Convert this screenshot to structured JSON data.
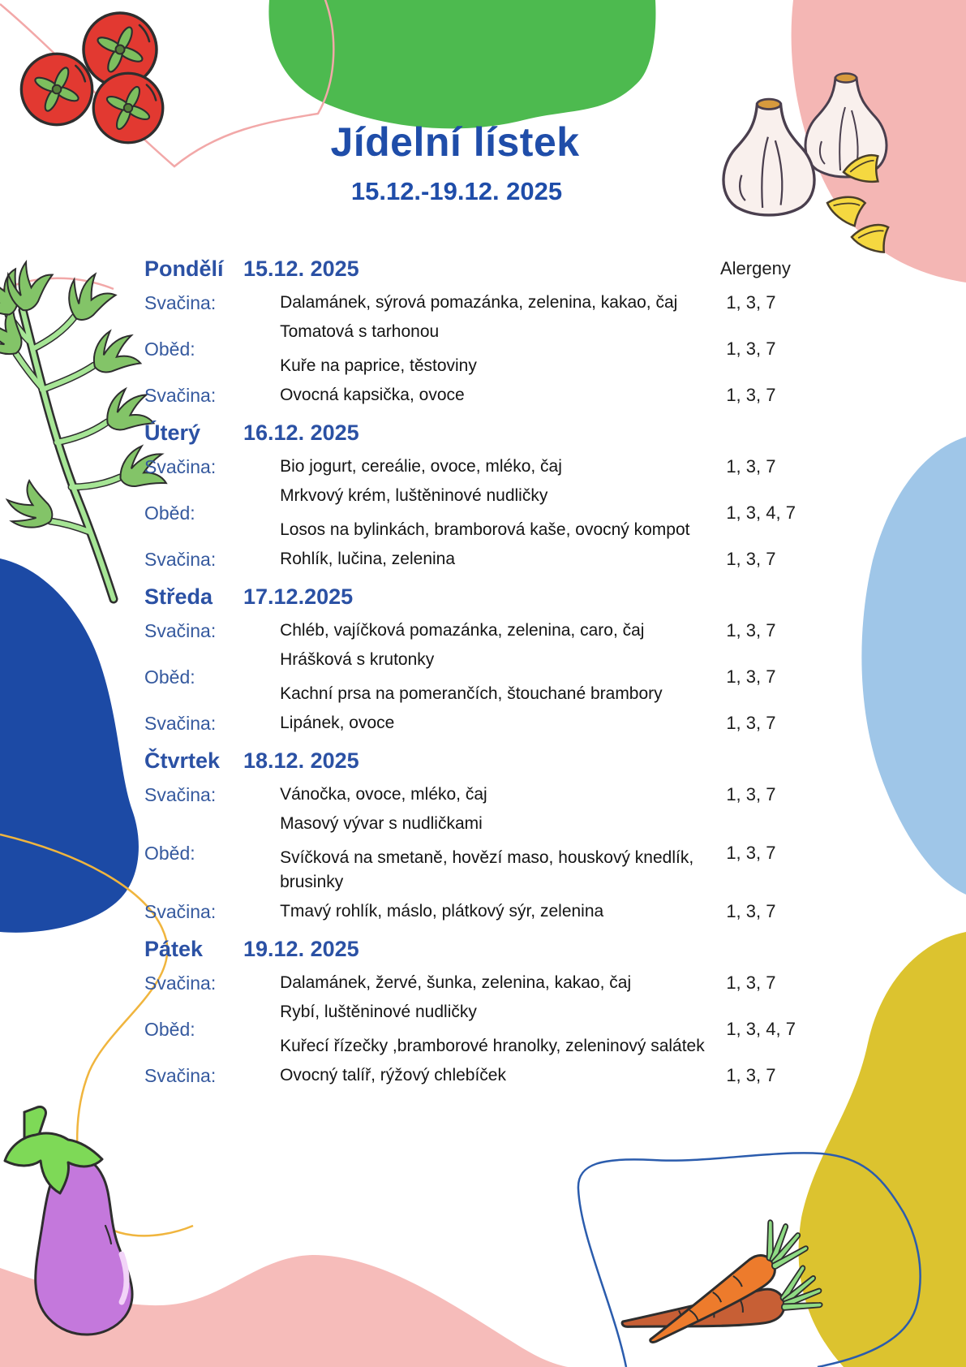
{
  "title": "Jídelní lístek",
  "date_range": "15.12.-19.12. 2025",
  "allergens_header": "Alergeny",
  "days": [
    {
      "name": "Pondělí",
      "date": "15.12. 2025",
      "rows": [
        {
          "label": "Svačina:",
          "items": [
            "Dalamánek, sýrová pomazánka, zelenina, kakao, čaj"
          ],
          "allergens": "1, 3, 7"
        },
        {
          "label": "Oběd:",
          "items": [
            "Tomatová s tarhonou",
            "Kuře na paprice, těstoviny"
          ],
          "allergens": "1, 3, 7"
        },
        {
          "label": "Svačina:",
          "items": [
            "Ovocná kapsička, ovoce"
          ],
          "allergens": "1, 3, 7"
        }
      ]
    },
    {
      "name": "Úterý",
      "date": "16.12. 2025",
      "rows": [
        {
          "label": "Svačina:",
          "items": [
            "Bio jogurt, cereálie, ovoce, mléko, čaj"
          ],
          "allergens": "1, 3, 7"
        },
        {
          "label": "Oběd:",
          "items": [
            "Mrkvový krém, luštěninové nudličky",
            "Losos na bylinkách, bramborová kaše, ovocný kompot"
          ],
          "allergens": "1, 3, 4, 7"
        },
        {
          "label": "Svačina:",
          "items": [
            "Rohlík, lučina, zelenina"
          ],
          "allergens": "1, 3, 7"
        }
      ]
    },
    {
      "name": "Středa",
      "date": "17.12.2025",
      "rows": [
        {
          "label": "Svačina:",
          "items": [
            "Chléb, vajíčková pomazánka, zelenina, caro, čaj"
          ],
          "allergens": "1, 3, 7"
        },
        {
          "label": "Oběd:",
          "items": [
            "Hrášková s krutonky",
            "Kachní prsa na pomerančích, štouchané brambory"
          ],
          "allergens": "1, 3, 7"
        },
        {
          "label": "Svačina:",
          "items": [
            "Lipánek, ovoce"
          ],
          "allergens": "1, 3, 7"
        }
      ]
    },
    {
      "name": "Čtvrtek",
      "date": "18.12. 2025",
      "rows": [
        {
          "label": "Svačina:",
          "items": [
            "Vánočka, ovoce, mléko, čaj"
          ],
          "allergens": "1, 3, 7"
        },
        {
          "label": "Oběd:",
          "items": [
            "Masový vývar s nudličkami",
            "Svíčková na smetaně, hovězí maso, houskový knedlík, brusinky"
          ],
          "allergens": "1, 3, 7"
        },
        {
          "label": "Svačina:",
          "items": [
            "Tmavý rohlík, máslo, plátkový sýr, zelenina"
          ],
          "allergens": "1, 3, 7"
        }
      ]
    },
    {
      "name": "Pátek",
      "date": "19.12. 2025",
      "rows": [
        {
          "label": "Svačina:",
          "items": [
            "Dalamánek, žervé, šunka, zelenina, kakao, čaj"
          ],
          "allergens": "1, 3, 7"
        },
        {
          "label": "Oběd:",
          "items": [
            "Rybí, luštěninové nudličky",
            "Kuřecí řízečky ,bramborové hranolky, zeleninový salátek"
          ],
          "allergens": "1, 3, 4, 7"
        },
        {
          "label": "Svačina:",
          "items": [
            "Ovocný talíř, rýžový chlebíček"
          ],
          "allergens": "1, 3, 7"
        }
      ]
    }
  ],
  "palette": {
    "heading_blue": "#1F4DA9",
    "day_blue": "#2B51A4",
    "label_blue": "#35599E",
    "text_black": "#141414",
    "green_blob": "#4DBA4F",
    "pink_blob": "#F4B6B4",
    "dark_blue_blob": "#1C4AA5",
    "light_blue_blob": "#9FC6E8",
    "yellow_blob": "#DCC32F",
    "tomato_red": "#E23931",
    "eggplant_purple": "#C478DC",
    "carrot_orange": "#ED7B2C",
    "leaf_green": "#83C468"
  },
  "decorations": [
    "green-blob",
    "pink-blob-top-right",
    "tomatoes-illustration",
    "garlic-illustration",
    "herb-sprig-illustration",
    "dark-blue-blob",
    "light-blue-blob",
    "yellow-blob-bottom-right",
    "pink-wave-bottom",
    "eggplant-illustration",
    "carrots-illustration",
    "pink-curve-line",
    "yellow-curve-line",
    "blue-outline-squiggle"
  ]
}
